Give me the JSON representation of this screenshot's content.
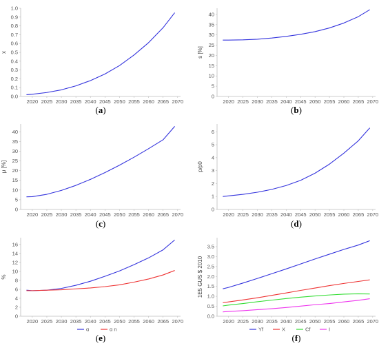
{
  "chart_data": [
    {
      "panel": "a",
      "caption": "(a)",
      "type": "line",
      "xlim": [
        2016,
        2071
      ],
      "ylim": [
        0,
        1.0
      ],
      "xticks": [
        2020,
        2025,
        2030,
        2035,
        2040,
        2045,
        2050,
        2055,
        2060,
        2065,
        2070
      ],
      "yticks": [
        0.0,
        0.1,
        0.2,
        0.3,
        0.4,
        0.5,
        0.6,
        0.7,
        0.8,
        0.9,
        1.0
      ],
      "ytick_decimals": 1,
      "ylabel": "x",
      "grid": false,
      "series": [
        {
          "color": "#3333dd",
          "x": [
            2018,
            2020,
            2025,
            2030,
            2035,
            2040,
            2045,
            2050,
            2055,
            2060,
            2065,
            2069
          ],
          "y": [
            0.02,
            0.025,
            0.045,
            0.075,
            0.12,
            0.18,
            0.255,
            0.35,
            0.47,
            0.61,
            0.78,
            0.95
          ]
        }
      ]
    },
    {
      "panel": "b",
      "caption": "(b)",
      "type": "line",
      "xlim": [
        2016,
        2071
      ],
      "ylim": [
        0,
        43
      ],
      "xticks": [
        2020,
        2025,
        2030,
        2035,
        2040,
        2045,
        2050,
        2055,
        2060,
        2065,
        2070
      ],
      "yticks": [
        0,
        5,
        10,
        15,
        20,
        25,
        30,
        35,
        40
      ],
      "ytick_decimals": 0,
      "ylabel": "s [%]",
      "grid": false,
      "series": [
        {
          "color": "#3333dd",
          "x": [
            2018,
            2020,
            2025,
            2030,
            2035,
            2040,
            2045,
            2050,
            2055,
            2060,
            2065,
            2069
          ],
          "y": [
            27.5,
            27.5,
            27.6,
            27.9,
            28.5,
            29.3,
            30.3,
            31.6,
            33.4,
            35.8,
            38.9,
            42.3
          ]
        }
      ]
    },
    {
      "panel": "c",
      "caption": "(c)",
      "type": "line",
      "xlim": [
        2016,
        2071
      ],
      "ylim": [
        0,
        44
      ],
      "xticks": [
        2020,
        2025,
        2030,
        2035,
        2040,
        2045,
        2050,
        2055,
        2060,
        2065,
        2070
      ],
      "yticks": [
        0,
        5,
        10,
        15,
        20,
        25,
        30,
        35,
        40
      ],
      "ytick_decimals": 0,
      "ylabel": "μ [%]",
      "grid": false,
      "series": [
        {
          "color": "#3333dd",
          "x": [
            2018,
            2020,
            2025,
            2030,
            2035,
            2040,
            2045,
            2050,
            2055,
            2060,
            2065,
            2069
          ],
          "y": [
            6.5,
            6.6,
            7.8,
            9.8,
            12.4,
            15.5,
            19.0,
            22.8,
            26.9,
            31.3,
            35.9,
            42.8
          ]
        }
      ]
    },
    {
      "panel": "d",
      "caption": "(d)",
      "type": "line",
      "xlim": [
        2016,
        2071
      ],
      "ylim": [
        0,
        6.6
      ],
      "xticks": [
        2020,
        2025,
        2030,
        2035,
        2040,
        2045,
        2050,
        2055,
        2060,
        2065,
        2070
      ],
      "yticks": [
        0,
        1,
        2,
        3,
        4,
        5,
        6
      ],
      "ytick_decimals": 0,
      "ylabel": "p/p0",
      "grid": false,
      "series": [
        {
          "color": "#3333dd",
          "x": [
            2018,
            2020,
            2025,
            2030,
            2035,
            2040,
            2045,
            2050,
            2055,
            2060,
            2065,
            2069
          ],
          "y": [
            1.0,
            1.05,
            1.17,
            1.33,
            1.55,
            1.85,
            2.25,
            2.8,
            3.5,
            4.35,
            5.3,
            6.3
          ]
        }
      ]
    },
    {
      "panel": "e",
      "caption": "(e)",
      "type": "line",
      "xlim": [
        2016,
        2071
      ],
      "ylim": [
        0,
        17.5
      ],
      "xticks": [
        2020,
        2025,
        2030,
        2035,
        2040,
        2045,
        2050,
        2055,
        2060,
        2065,
        2070
      ],
      "yticks": [
        0,
        2,
        4,
        6,
        8,
        10,
        12,
        14,
        16
      ],
      "ytick_decimals": 0,
      "ylabel": "%",
      "grid": false,
      "legend": "bottom-center",
      "series": [
        {
          "name": "α",
          "color": "#3333dd",
          "x": [
            2018,
            2020,
            2025,
            2030,
            2035,
            2040,
            2045,
            2050,
            2055,
            2060,
            2065,
            2069
          ],
          "y": [
            5.8,
            5.7,
            5.8,
            6.2,
            6.9,
            7.8,
            8.9,
            10.1,
            11.5,
            13.0,
            14.8,
            17.0
          ]
        },
        {
          "name": "α n",
          "color": "#ee3333",
          "x": [
            2018,
            2020,
            2025,
            2030,
            2035,
            2040,
            2045,
            2050,
            2055,
            2060,
            2065,
            2069
          ],
          "y": [
            5.7,
            5.7,
            5.8,
            5.9,
            6.1,
            6.3,
            6.6,
            7.0,
            7.6,
            8.3,
            9.2,
            10.2
          ]
        }
      ]
    },
    {
      "panel": "f",
      "caption": "(f)",
      "type": "line",
      "xlim": [
        2016,
        2071
      ],
      "ylim": [
        0,
        3.95
      ],
      "xticks": [
        2020,
        2025,
        2030,
        2035,
        2040,
        2045,
        2050,
        2055,
        2060,
        2065,
        2070
      ],
      "yticks": [
        0.0,
        0.5,
        1.0,
        1.5,
        2.0,
        2.5,
        3.0,
        3.5
      ],
      "ytick_decimals": 1,
      "ylabel": "1E5 GUS $ 2010",
      "grid": false,
      "legend": "bottom-center",
      "series": [
        {
          "name": "Yf",
          "color": "#3333dd",
          "x": [
            2018,
            2020,
            2025,
            2030,
            2035,
            2040,
            2045,
            2050,
            2055,
            2060,
            2065,
            2069
          ],
          "y": [
            1.38,
            1.45,
            1.67,
            1.9,
            2.14,
            2.38,
            2.63,
            2.88,
            3.12,
            3.36,
            3.58,
            3.8
          ]
        },
        {
          "name": "X",
          "color": "#ee3333",
          "x": [
            2018,
            2020,
            2025,
            2030,
            2035,
            2040,
            2045,
            2050,
            2055,
            2060,
            2065,
            2069
          ],
          "y": [
            0.68,
            0.72,
            0.82,
            0.93,
            1.05,
            1.17,
            1.3,
            1.42,
            1.54,
            1.65,
            1.75,
            1.83
          ]
        },
        {
          "name": "Cf",
          "color": "#33dd33",
          "x": [
            2018,
            2020,
            2025,
            2030,
            2035,
            2040,
            2045,
            2050,
            2055,
            2060,
            2065,
            2069
          ],
          "y": [
            0.52,
            0.56,
            0.64,
            0.73,
            0.81,
            0.89,
            0.96,
            1.02,
            1.07,
            1.11,
            1.13,
            1.12
          ]
        },
        {
          "name": "I",
          "color": "#ee33ee",
          "x": [
            2018,
            2020,
            2025,
            2030,
            2035,
            2040,
            2045,
            2050,
            2055,
            2060,
            2065,
            2069
          ],
          "y": [
            0.22,
            0.24,
            0.28,
            0.33,
            0.38,
            0.44,
            0.51,
            0.58,
            0.64,
            0.72,
            0.8,
            0.88
          ]
        }
      ]
    }
  ]
}
